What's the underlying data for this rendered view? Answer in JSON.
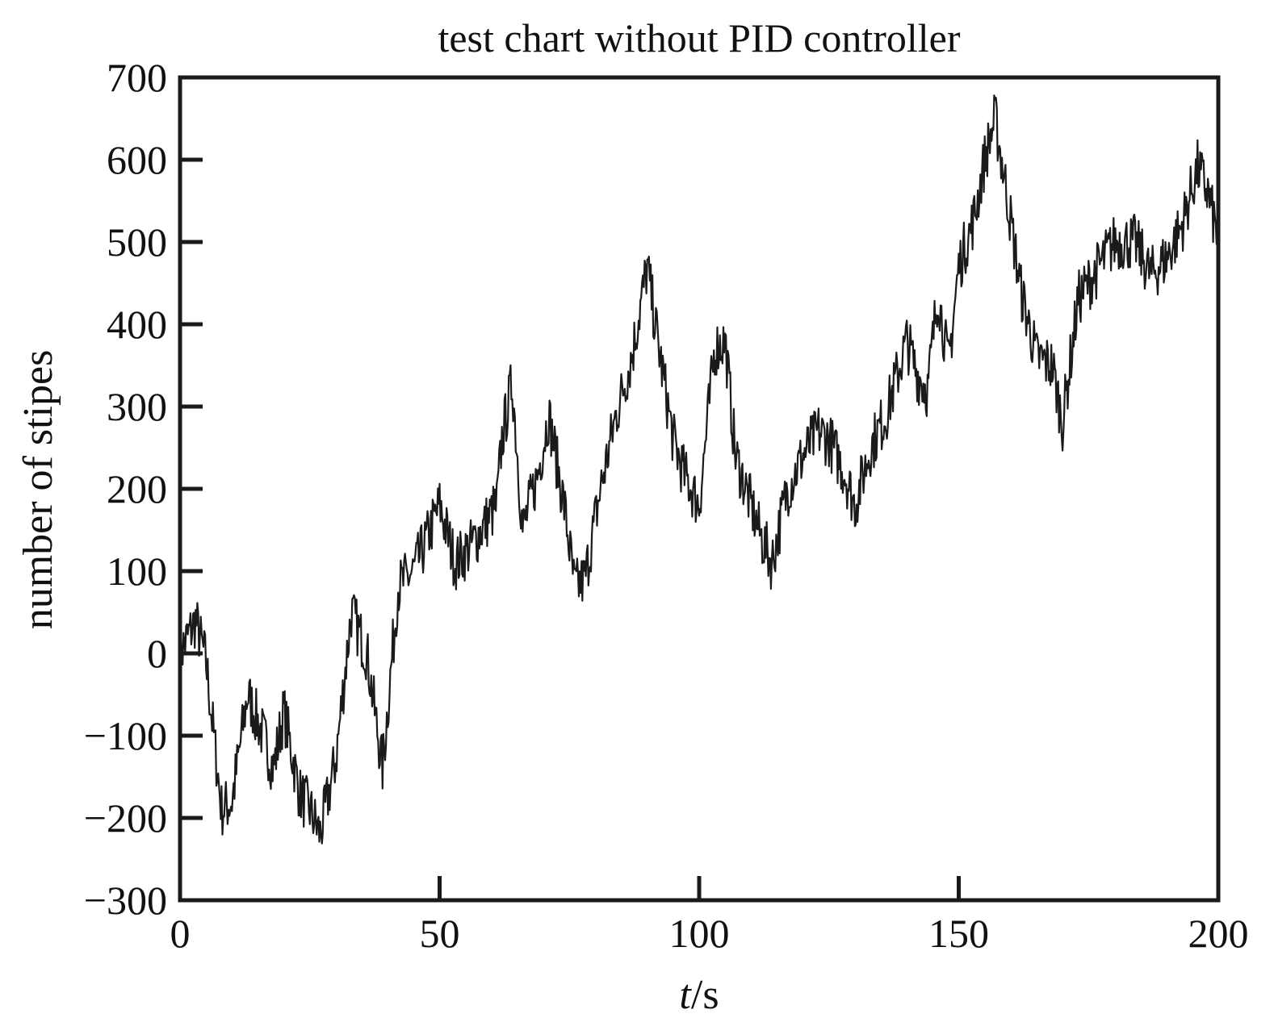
{
  "chart_data": {
    "type": "line",
    "title": "test chart without PID controller",
    "xlabel_italic": "t",
    "xlabel_rest": "/s",
    "ylabel": "number of stipes",
    "xlim": [
      0,
      200
    ],
    "ylim": [
      -300,
      700
    ],
    "x_ticks": [
      0,
      50,
      100,
      150,
      200
    ],
    "y_ticks": [
      -300,
      -200,
      -100,
      0,
      100,
      200,
      300,
      400,
      500,
      600,
      700
    ],
    "x_tick_labels": [
      "0",
      "50",
      "100",
      "150",
      "200"
    ],
    "y_tick_labels": [
      "−300",
      "−200",
      "−100",
      "0",
      "100",
      "200",
      "300",
      "400",
      "500",
      "600",
      "700"
    ],
    "grid": false,
    "line_color": "#1a1a1a",
    "series": [
      {
        "x": [
          0,
          3,
          5,
          8,
          10,
          13,
          16,
          18,
          20,
          23,
          25,
          27,
          30,
          33,
          36,
          39,
          42,
          45,
          47,
          50,
          53,
          56,
          59,
          61,
          62,
          64,
          66,
          69,
          71,
          74,
          76,
          78,
          81,
          84,
          87,
          90,
          92,
          95,
          97,
          100,
          103,
          105,
          107,
          110,
          112,
          114,
          117,
          120,
          123,
          125,
          128,
          130,
          133,
          136,
          140,
          142,
          144,
          146,
          148,
          150,
          153,
          155,
          157,
          159,
          162,
          165,
          168,
          170,
          173,
          176,
          180,
          184,
          187,
          190,
          193,
          196,
          198,
          200
        ],
        "y": [
          0,
          40,
          -10,
          -190,
          -180,
          -50,
          -100,
          -140,
          -70,
          -170,
          -190,
          -220,
          -130,
          50,
          0,
          -140,
          80,
          100,
          130,
          180,
          110,
          130,
          160,
          180,
          260,
          330,
          150,
          220,
          290,
          180,
          80,
          90,
          200,
          290,
          360,
          470,
          380,
          260,
          220,
          180,
          370,
          380,
          240,
          180,
          140,
          110,
          200,
          240,
          270,
          260,
          220,
          180,
          250,
          290,
          380,
          340,
          320,
          440,
          350,
          470,
          530,
          600,
          650,
          570,
          440,
          360,
          350,
          280,
          430,
          460,
          500,
          500,
          460,
          480,
          520,
          590,
          560,
          500
        ]
      }
    ]
  }
}
